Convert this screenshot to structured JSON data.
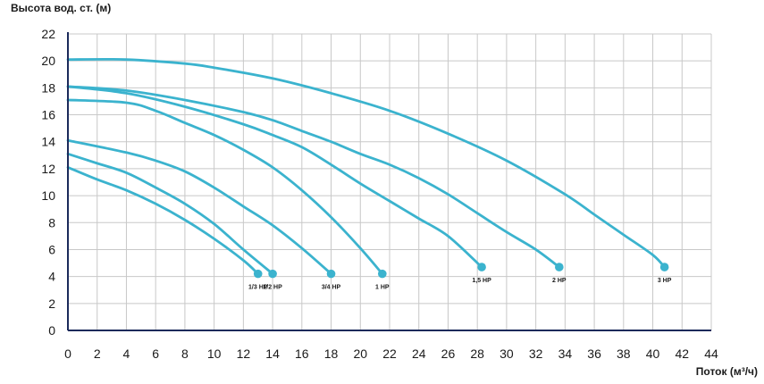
{
  "chart_data": {
    "type": "line",
    "title": "",
    "ylabel": "Высота вод. ст. (м)",
    "xlabel": "Поток (м³/ч)",
    "xlim": [
      0,
      44
    ],
    "ylim": [
      0,
      22
    ],
    "x_ticks": [
      "0",
      "2",
      "4",
      "6",
      "8",
      "10",
      "12",
      "14",
      "16",
      "18",
      "20",
      "22",
      "24",
      "26",
      "28",
      "30",
      "32",
      "34",
      "36",
      "38",
      "40",
      "42",
      "44"
    ],
    "y_ticks": [
      "0",
      "2",
      "4",
      "6",
      "8",
      "10",
      "12",
      "14",
      "16",
      "18",
      "20",
      "22"
    ],
    "grid": true,
    "line_color": "#3bb3ce",
    "axis_color": "#1b2a5b",
    "series": [
      {
        "name": "1/3 HP",
        "points": [
          [
            0,
            12.1
          ],
          [
            2,
            11.2
          ],
          [
            4,
            10.4
          ],
          [
            6,
            9.4
          ],
          [
            8,
            8.2
          ],
          [
            10,
            6.8
          ],
          [
            12,
            5.2
          ],
          [
            13,
            4.2
          ]
        ]
      },
      {
        "name": "1/2 HP",
        "points": [
          [
            0,
            13.1
          ],
          [
            2,
            12.4
          ],
          [
            4,
            11.7
          ],
          [
            6,
            10.6
          ],
          [
            8,
            9.4
          ],
          [
            10,
            7.9
          ],
          [
            12,
            6.0
          ],
          [
            14,
            4.2
          ]
        ]
      },
      {
        "name": "3/4 HP",
        "points": [
          [
            0,
            14.1
          ],
          [
            4,
            13.2
          ],
          [
            6,
            12.6
          ],
          [
            8,
            11.8
          ],
          [
            10,
            10.6
          ],
          [
            12,
            9.2
          ],
          [
            14,
            7.8
          ],
          [
            16,
            6.1
          ],
          [
            18,
            4.2
          ]
        ]
      },
      {
        "name": "1 HP",
        "points": [
          [
            0,
            17.1
          ],
          [
            4,
            16.9
          ],
          [
            6,
            16.3
          ],
          [
            8,
            15.4
          ],
          [
            10,
            14.5
          ],
          [
            12,
            13.4
          ],
          [
            14,
            12.1
          ],
          [
            16,
            10.4
          ],
          [
            18,
            8.4
          ],
          [
            20,
            6.1
          ],
          [
            21.5,
            4.2
          ]
        ]
      },
      {
        "name": "1,5 HP",
        "points": [
          [
            0,
            18.1
          ],
          [
            4,
            17.6
          ],
          [
            8,
            16.6
          ],
          [
            12,
            15.3
          ],
          [
            14,
            14.5
          ],
          [
            16,
            13.6
          ],
          [
            18,
            12.3
          ],
          [
            20,
            10.9
          ],
          [
            22,
            9.6
          ],
          [
            24,
            8.3
          ],
          [
            26,
            7.0
          ],
          [
            28.3,
            4.7
          ]
        ]
      },
      {
        "name": "2 HP",
        "points": [
          [
            0,
            18.1
          ],
          [
            4,
            17.8
          ],
          [
            8,
            17.1
          ],
          [
            12,
            16.2
          ],
          [
            14,
            15.6
          ],
          [
            16,
            14.8
          ],
          [
            18,
            14.0
          ],
          [
            20,
            13.1
          ],
          [
            22,
            12.3
          ],
          [
            24,
            11.3
          ],
          [
            26,
            10.1
          ],
          [
            28,
            8.7
          ],
          [
            30,
            7.3
          ],
          [
            32,
            6.0
          ],
          [
            33.6,
            4.7
          ]
        ]
      },
      {
        "name": "3 HP",
        "points": [
          [
            0,
            20.1
          ],
          [
            4,
            20.1
          ],
          [
            8,
            19.8
          ],
          [
            10,
            19.5
          ],
          [
            14,
            18.7
          ],
          [
            18,
            17.6
          ],
          [
            22,
            16.3
          ],
          [
            26,
            14.6
          ],
          [
            30,
            12.6
          ],
          [
            34,
            10.1
          ],
          [
            36,
            8.6
          ],
          [
            38,
            7.1
          ],
          [
            40,
            5.6
          ],
          [
            40.8,
            4.7
          ]
        ]
      }
    ]
  }
}
